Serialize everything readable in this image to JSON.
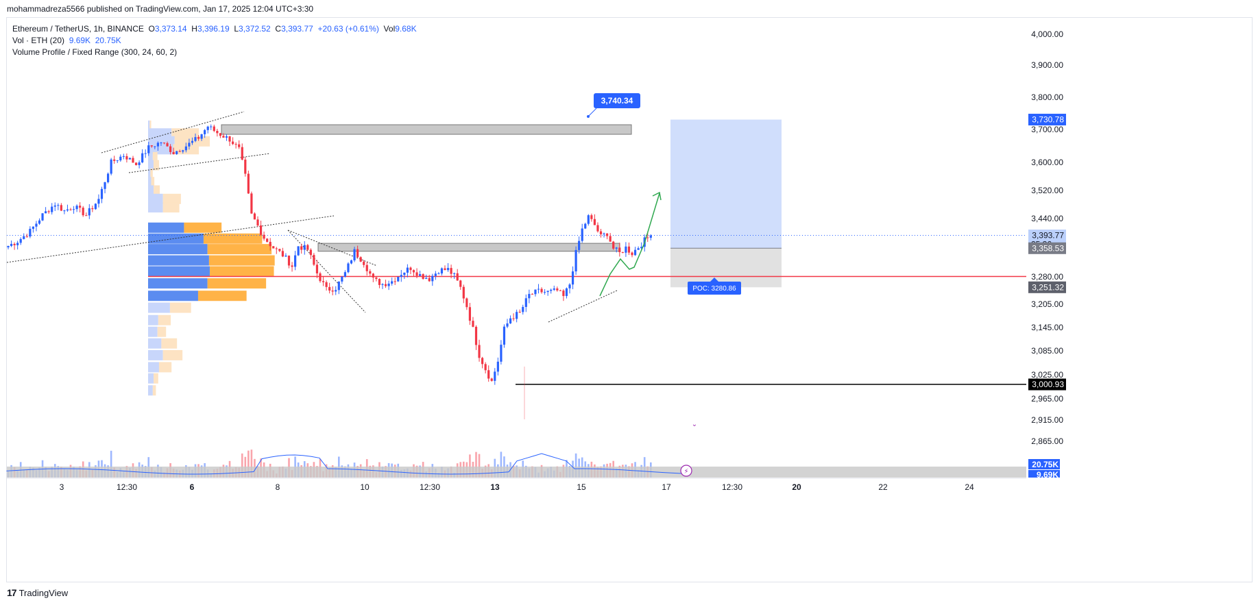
{
  "publisher": {
    "text": "mohammadreza5566 published on TradingView.com, Jan 17, 2025 12:04 UTC+3:30"
  },
  "legend": {
    "symbol": "Ethereum / TetherUS, 1h, BINANCE",
    "open_label": "O",
    "open": "3,373.14",
    "high_label": "H",
    "high": "3,396.19",
    "low_label": "L",
    "low": "3,372.52",
    "close_label": "C",
    "close": "3,393.77",
    "change": "+20.63 (+0.61%)",
    "vol_label": "Vol",
    "vol": "9.68K",
    "vol_indicator": "Vol · ETH (20)",
    "vol_ind_value1": "9.69K",
    "vol_ind_value2": "20.75K",
    "volume_profile": "Volume Profile / Fixed Range (300, 24, 60, 2)"
  },
  "colors": {
    "up": "#2962ff",
    "down": "#f23645",
    "vp_up": "#5b8cf0",
    "vp_down": "#ffb347",
    "target_zone": "#bcd0fb",
    "stop_zone": "#d9d9d9",
    "poc_line": "#f23645"
  },
  "brand": {
    "logo": "17",
    "name": "TradingView"
  },
  "chart_data": {
    "type": "candlestick",
    "symbol": "Ethereum / TetherUS, 1h, BINANCE",
    "y_axis": {
      "ticks": [
        "4,000.00",
        "3,900.00",
        "3,800.00",
        "3,700.00",
        "3,600.00",
        "3,520.00",
        "3,440.00",
        "3,280.00",
        "3,205.00",
        "3,145.00",
        "3,085.00",
        "3,025.00",
        "2,965.00",
        "2,915.00",
        "2,865.00"
      ],
      "ylim": [
        2800,
        4040
      ]
    },
    "x_axis": {
      "ticks": [
        "3",
        "12:30",
        "6",
        "8",
        "10",
        "12:30",
        "13",
        "15",
        "17",
        "12:30",
        "20",
        "22",
        "24"
      ],
      "bold_ticks": [
        "6",
        "13",
        "20"
      ]
    },
    "price_labels": [
      {
        "value": "3,730.78",
        "style": "target"
      },
      {
        "value": "3,393.77",
        "style": "current",
        "countdown": "25:36"
      },
      {
        "value": "3,358.53",
        "style": "entry"
      },
      {
        "value": "3,251.32",
        "style": "stop"
      },
      {
        "value": "3,000.93",
        "style": "level"
      }
    ],
    "volume_labels": [
      {
        "value": "20.75K",
        "style": "vol-ma"
      },
      {
        "value": "9.69K",
        "style": "vol"
      }
    ],
    "annotations": [
      {
        "text": "3,740.34",
        "type": "price-callout"
      },
      {
        "text": "POC: 3280.86",
        "type": "poc-label"
      }
    ],
    "levels": {
      "resistance_zone_top": 3740.34,
      "resistance_zone_bottom": 3718,
      "support_zone_top": 3372,
      "support_zone_bottom": 3352,
      "poc": 3280.86,
      "low_level": 3000.93,
      "target": 3730.78,
      "entry": 3358.53,
      "stop": 3251.32,
      "current": 3393.77
    },
    "price_path": [
      [
        1,
        3365
      ],
      [
        4,
        3378
      ],
      [
        8,
        3405
      ],
      [
        12,
        3450
      ],
      [
        16,
        3482
      ],
      [
        19,
        3462
      ],
      [
        22,
        3475
      ],
      [
        26,
        3450
      ],
      [
        30,
        3495
      ],
      [
        34,
        3600
      ],
      [
        38,
        3622
      ],
      [
        42,
        3595
      ],
      [
        46,
        3645
      ],
      [
        50,
        3662
      ],
      [
        54,
        3630
      ],
      [
        58,
        3650
      ],
      [
        62,
        3675
      ],
      [
        65,
        3710
      ],
      [
        68,
        3690
      ],
      [
        72,
        3670
      ],
      [
        75,
        3640
      ],
      [
        77,
        3560
      ],
      [
        79,
        3450
      ],
      [
        81,
        3420
      ],
      [
        83,
        3388
      ],
      [
        86,
        3360
      ],
      [
        89,
        3340
      ],
      [
        92,
        3310
      ],
      [
        94,
        3365
      ],
      [
        97,
        3355
      ],
      [
        100,
        3290
      ],
      [
        103,
        3245
      ],
      [
        106,
        3250
      ],
      [
        109,
        3290
      ],
      [
        112,
        3350
      ],
      [
        115,
        3320
      ],
      [
        118,
        3272
      ],
      [
        121,
        3260
      ],
      [
        124,
        3268
      ],
      [
        127,
        3290
      ],
      [
        130,
        3305
      ],
      [
        133,
        3285
      ],
      [
        136,
        3275
      ],
      [
        139,
        3298
      ],
      [
        142,
        3300
      ],
      [
        144,
        3282
      ],
      [
        146,
        3250
      ],
      [
        148,
        3200
      ],
      [
        150,
        3140
      ],
      [
        152,
        3075
      ],
      [
        154,
        3040
      ],
      [
        156,
        3008
      ],
      [
        158,
        3060
      ],
      [
        160,
        3140
      ],
      [
        162,
        3170
      ],
      [
        165,
        3182
      ],
      [
        168,
        3230
      ],
      [
        171,
        3240
      ],
      [
        174,
        3238
      ],
      [
        177,
        3242
      ],
      [
        179,
        3225
      ],
      [
        181,
        3260
      ],
      [
        183,
        3345
      ],
      [
        185,
        3410
      ],
      [
        187,
        3445
      ],
      [
        189,
        3422
      ],
      [
        191,
        3390
      ],
      [
        193,
        3400
      ],
      [
        195,
        3358
      ],
      [
        197,
        3345
      ],
      [
        199,
        3360
      ],
      [
        201,
        3345
      ],
      [
        203,
        3362
      ],
      [
        205,
        3380
      ],
      [
        207,
        3393.77
      ]
    ],
    "volume_profile": [
      {
        "price": 3712,
        "up": 0.02,
        "down": 0.02
      },
      {
        "price": 3688,
        "up": 0.3,
        "down": 0.35
      },
      {
        "price": 3664,
        "up": 0.34,
        "down": 0.45
      },
      {
        "price": 3640,
        "up": 0.32,
        "down": 0.33
      },
      {
        "price": 3616,
        "up": 0.06,
        "down": 0.06
      },
      {
        "price": 3592,
        "up": 0.07,
        "down": 0.07
      },
      {
        "price": 3568,
        "up": 0.03,
        "down": 0.03
      },
      {
        "price": 3544,
        "up": 0.04,
        "down": 0.04
      },
      {
        "price": 3520,
        "up": 0.07,
        "down": 0.08
      },
      {
        "price": 3496,
        "up": 0.19,
        "down": 0.23
      },
      {
        "price": 3472,
        "up": 0.19,
        "down": 0.21
      },
      {
        "price": 3415,
        "up": 0.46,
        "down": 0.48
      },
      {
        "price": 3385,
        "up": 0.71,
        "down": 0.75
      },
      {
        "price": 3356,
        "up": 0.76,
        "down": 0.82
      },
      {
        "price": 3325,
        "up": 0.78,
        "down": 0.84
      },
      {
        "price": 3295,
        "up": 0.79,
        "down": 0.82
      },
      {
        "price": 3262,
        "up": 0.76,
        "down": 0.75
      },
      {
        "price": 3228,
        "up": 0.64,
        "down": 0.62
      },
      {
        "price": 3196,
        "up": 0.28,
        "down": 0.27
      },
      {
        "price": 3164,
        "up": 0.13,
        "down": 0.16
      },
      {
        "price": 3134,
        "up": 0.12,
        "down": 0.11
      },
      {
        "price": 3104,
        "up": 0.17,
        "down": 0.2
      },
      {
        "price": 3074,
        "up": 0.19,
        "down": 0.25
      },
      {
        "price": 3044,
        "up": 0.14,
        "down": 0.16
      },
      {
        "price": 3016,
        "up": 0.07,
        "down": 0.06
      },
      {
        "price": 2986,
        "up": 0.06,
        "down": 0.04
      }
    ]
  }
}
